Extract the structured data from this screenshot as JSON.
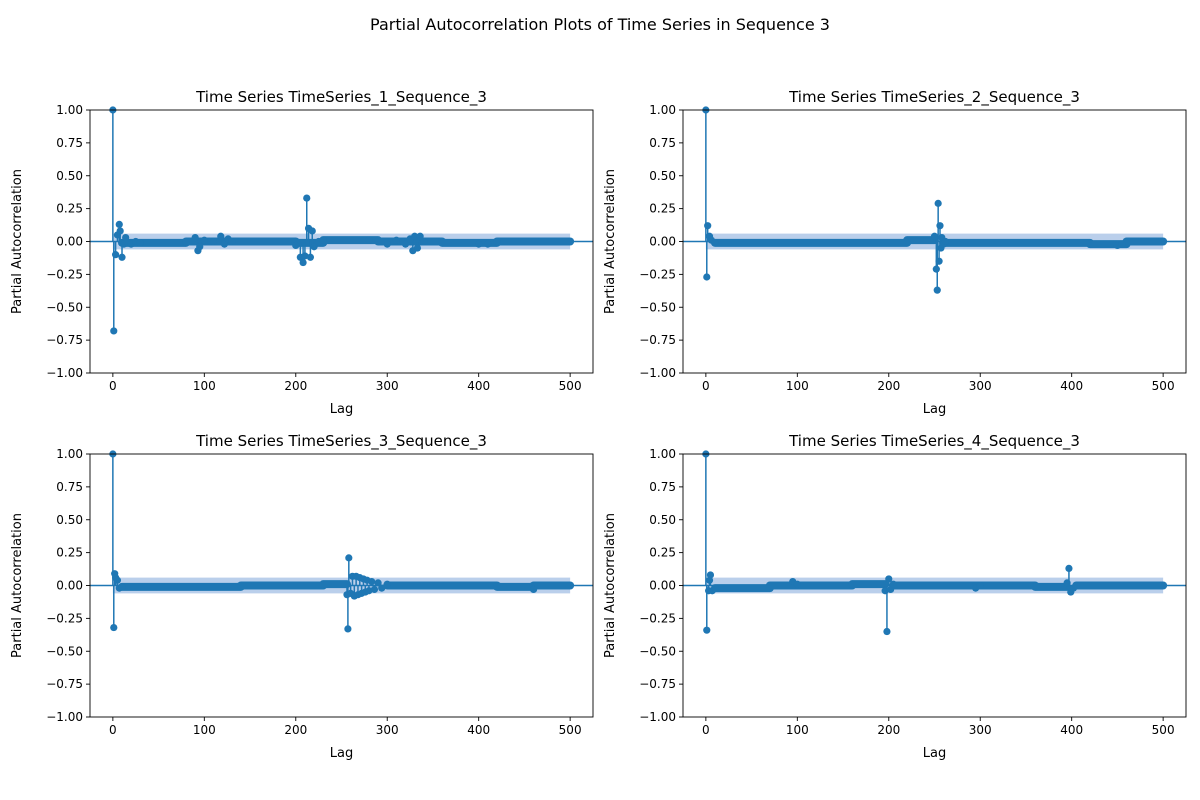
{
  "figure": {
    "suptitle": "Partial Autocorrelation Plots of Time Series in Sequence 3"
  },
  "style": {
    "stem_color": "#1f77b4",
    "band_color": "#aec7e8",
    "axis_color": "#000000"
  },
  "chart_data": [
    {
      "type": "scatter",
      "title": "Time Series TimeSeries_1_Sequence_3",
      "xlabel": "Lag",
      "ylabel": "Partial Autocorrelation",
      "xlim": [
        -25,
        525
      ],
      "ylim": [
        -1.0,
        1.0
      ],
      "xticks": [
        "0",
        "100",
        "200",
        "300",
        "400",
        "500"
      ],
      "yticks": [
        "−1.00",
        "−0.75",
        "−0.50",
        "−0.25",
        "0.00",
        "0.25",
        "0.50",
        "0.75",
        "1.00"
      ],
      "confidence_band": 0.06,
      "max_lag": 500,
      "spikes": [
        [
          0,
          1.0
        ],
        [
          1,
          -0.68
        ],
        [
          3,
          -0.1
        ],
        [
          5,
          0.05
        ],
        [
          7,
          0.13
        ],
        [
          8,
          0.08
        ],
        [
          10,
          -0.12
        ],
        [
          12,
          -0.02
        ],
        [
          14,
          0.03
        ],
        [
          16,
          -0.01
        ],
        [
          20,
          -0.02
        ],
        [
          25,
          0.0
        ],
        [
          30,
          -0.01
        ],
        [
          90,
          0.03
        ],
        [
          93,
          -0.07
        ],
        [
          95,
          -0.04
        ],
        [
          100,
          0.01
        ],
        [
          110,
          0.0
        ],
        [
          118,
          0.04
        ],
        [
          122,
          -0.02
        ],
        [
          126,
          0.02
        ],
        [
          130,
          0.0
        ],
        [
          200,
          -0.03
        ],
        [
          205,
          -0.12
        ],
        [
          208,
          -0.16
        ],
        [
          210,
          -0.11
        ],
        [
          212,
          0.33
        ],
        [
          214,
          0.1
        ],
        [
          216,
          -0.12
        ],
        [
          218,
          0.08
        ],
        [
          220,
          -0.04
        ],
        [
          225,
          0.0
        ],
        [
          230,
          0.01
        ],
        [
          280,
          0.01
        ],
        [
          300,
          -0.02
        ],
        [
          310,
          0.01
        ],
        [
          320,
          -0.02
        ],
        [
          325,
          0.02
        ],
        [
          328,
          -0.07
        ],
        [
          330,
          0.04
        ],
        [
          333,
          -0.05
        ],
        [
          336,
          0.04
        ],
        [
          340,
          0.0
        ],
        [
          400,
          -0.02
        ],
        [
          410,
          -0.02
        ],
        [
          420,
          0.0
        ]
      ],
      "baseline_segments": [
        [
          10,
          80,
          -0.01
        ],
        [
          80,
          200,
          0.0
        ],
        [
          200,
          230,
          -0.01
        ],
        [
          230,
          290,
          0.01
        ],
        [
          290,
          360,
          0.0
        ],
        [
          360,
          420,
          -0.01
        ],
        [
          420,
          500,
          0.0
        ]
      ]
    },
    {
      "type": "scatter",
      "title": "Time Series TimeSeries_2_Sequence_3",
      "xlabel": "Lag",
      "ylabel": "Partial Autocorrelation",
      "xlim": [
        -25,
        525
      ],
      "ylim": [
        -1.0,
        1.0
      ],
      "xticks": [
        "0",
        "100",
        "200",
        "300",
        "400",
        "500"
      ],
      "yticks": [
        "−1.00",
        "−0.75",
        "−0.50",
        "−0.25",
        "0.00",
        "0.25",
        "0.50",
        "0.75",
        "1.00"
      ],
      "confidence_band": 0.06,
      "max_lag": 500,
      "spikes": [
        [
          0,
          1.0
        ],
        [
          1,
          -0.27
        ],
        [
          2,
          0.12
        ],
        [
          4,
          0.04
        ],
        [
          6,
          0.01
        ],
        [
          10,
          -0.01
        ],
        [
          250,
          0.04
        ],
        [
          252,
          -0.21
        ],
        [
          253,
          -0.37
        ],
        [
          254,
          0.29
        ],
        [
          255,
          -0.15
        ],
        [
          256,
          0.12
        ],
        [
          257,
          -0.05
        ],
        [
          258,
          0.03
        ],
        [
          260,
          -0.02
        ],
        [
          262,
          0.0
        ],
        [
          450,
          -0.03
        ],
        [
          455,
          -0.02
        ]
      ],
      "baseline_segments": [
        [
          10,
          220,
          -0.01
        ],
        [
          220,
          250,
          0.01
        ],
        [
          260,
          420,
          -0.01
        ],
        [
          420,
          460,
          -0.02
        ],
        [
          460,
          500,
          0.0
        ]
      ]
    },
    {
      "type": "scatter",
      "title": "Time Series TimeSeries_3_Sequence_3",
      "xlabel": "Lag",
      "ylabel": "Partial Autocorrelation",
      "xlim": [
        -25,
        525
      ],
      "ylim": [
        -1.0,
        1.0
      ],
      "xticks": [
        "0",
        "100",
        "200",
        "300",
        "400",
        "500"
      ],
      "yticks": [
        "−1.00",
        "−0.75",
        "−0.50",
        "−0.25",
        "0.00",
        "0.25",
        "0.50",
        "0.75",
        "1.00"
      ],
      "confidence_band": 0.06,
      "max_lag": 500,
      "spikes": [
        [
          0,
          1.0
        ],
        [
          1,
          -0.32
        ],
        [
          2,
          0.09
        ],
        [
          3,
          0.06
        ],
        [
          5,
          0.04
        ],
        [
          7,
          -0.02
        ],
        [
          10,
          -0.01
        ],
        [
          256,
          -0.07
        ],
        [
          257,
          -0.33
        ],
        [
          258,
          0.21
        ],
        [
          260,
          -0.06
        ],
        [
          262,
          0.07
        ],
        [
          264,
          -0.08
        ],
        [
          266,
          0.07
        ],
        [
          268,
          -0.07
        ],
        [
          270,
          0.06
        ],
        [
          272,
          -0.06
        ],
        [
          274,
          0.05
        ],
        [
          276,
          -0.05
        ],
        [
          278,
          0.04
        ],
        [
          280,
          -0.04
        ],
        [
          283,
          0.03
        ],
        [
          286,
          -0.03
        ],
        [
          290,
          0.02
        ],
        [
          294,
          -0.02
        ],
        [
          300,
          0.01
        ],
        [
          460,
          -0.03
        ]
      ],
      "baseline_segments": [
        [
          10,
          140,
          -0.01
        ],
        [
          140,
          230,
          0.0
        ],
        [
          230,
          256,
          0.01
        ],
        [
          300,
          420,
          0.0
        ],
        [
          420,
          460,
          -0.01
        ],
        [
          460,
          500,
          0.0
        ]
      ]
    },
    {
      "type": "scatter",
      "title": "Time Series TimeSeries_4_Sequence_3",
      "xlabel": "Lag",
      "ylabel": "Partial Autocorrelation",
      "xlim": [
        -25,
        525
      ],
      "ylim": [
        -1.0,
        1.0
      ],
      "xticks": [
        "0",
        "100",
        "200",
        "300",
        "400",
        "500"
      ],
      "yticks": [
        "−1.00",
        "−0.75",
        "−0.50",
        "−0.25",
        "0.00",
        "0.25",
        "0.50",
        "0.75",
        "1.00"
      ],
      "confidence_band": 0.06,
      "max_lag": 500,
      "spikes": [
        [
          0,
          1.0
        ],
        [
          1,
          -0.34
        ],
        [
          3,
          -0.04
        ],
        [
          4,
          0.04
        ],
        [
          5,
          0.08
        ],
        [
          7,
          -0.04
        ],
        [
          10,
          -0.02
        ],
        [
          95,
          0.03
        ],
        [
          100,
          0.01
        ],
        [
          196,
          -0.04
        ],
        [
          198,
          -0.35
        ],
        [
          200,
          0.05
        ],
        [
          202,
          -0.03
        ],
        [
          205,
          0.01
        ],
        [
          295,
          -0.02
        ],
        [
          300,
          0.0
        ],
        [
          395,
          0.02
        ],
        [
          397,
          0.13
        ],
        [
          399,
          -0.05
        ],
        [
          402,
          -0.02
        ],
        [
          405,
          0.0
        ]
      ],
      "baseline_segments": [
        [
          10,
          70,
          -0.02
        ],
        [
          70,
          160,
          0.0
        ],
        [
          160,
          196,
          0.01
        ],
        [
          205,
          360,
          0.0
        ],
        [
          360,
          395,
          -0.01
        ],
        [
          405,
          500,
          0.0
        ]
      ]
    }
  ]
}
